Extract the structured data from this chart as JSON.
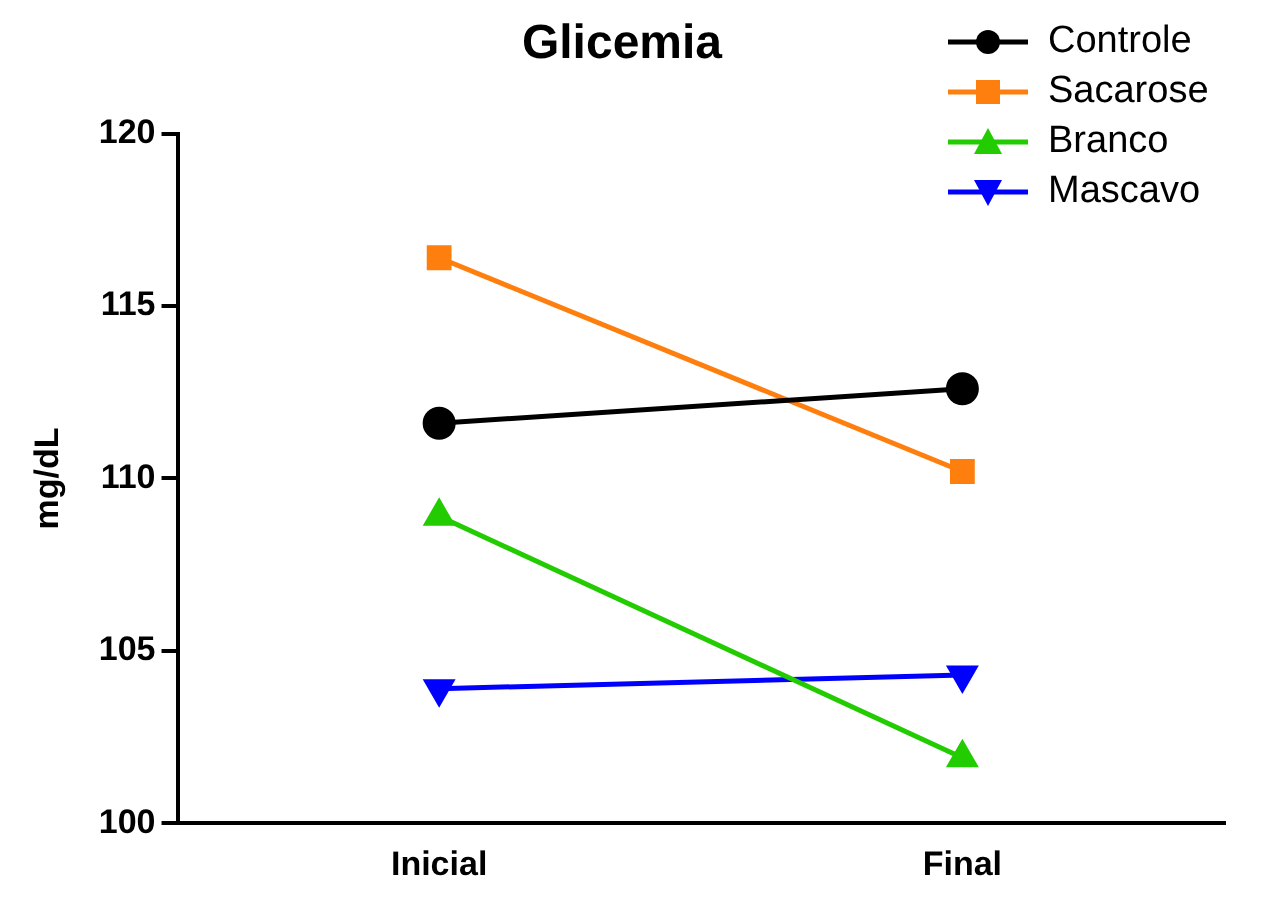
{
  "chart_data": {
    "type": "line",
    "title": "Glicemia",
    "ylabel": "mg/dL",
    "categories": [
      "Inicial",
      "Final"
    ],
    "series": [
      {
        "name": "Controle",
        "color": "#000000",
        "marker": "circle",
        "values": [
          111.6,
          112.6
        ]
      },
      {
        "name": "Sacarose",
        "color": "#ff7f0e",
        "marker": "square",
        "values": [
          116.4,
          110.2
        ]
      },
      {
        "name": "Branco",
        "color": "#22cc00",
        "marker": "triangle",
        "values": [
          108.9,
          101.9
        ]
      },
      {
        "name": "Mascavo",
        "color": "#0000ff",
        "marker": "triangle-down",
        "values": [
          103.9,
          104.3
        ]
      }
    ],
    "ylim": [
      100,
      120
    ],
    "yticks": [
      100,
      105,
      110,
      115,
      120
    ],
    "grid": false,
    "legend": "top right",
    "line_style": "solid"
  }
}
